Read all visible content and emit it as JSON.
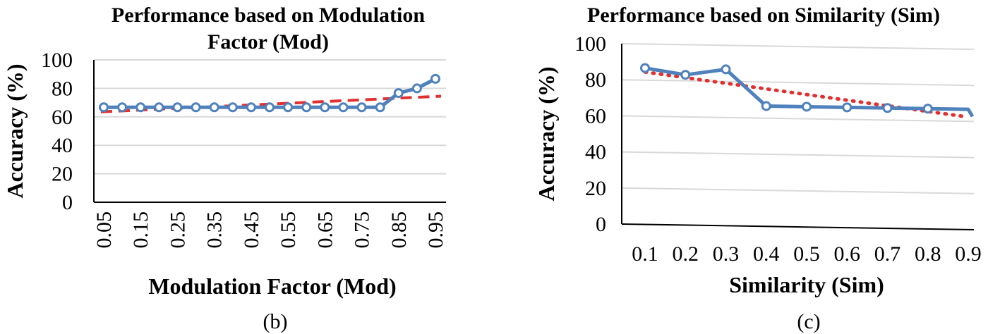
{
  "chart_data": [
    {
      "type": "line",
      "title": "Performance based on Modulation Factor (Mod)",
      "title_lines": [
        "Performance based on Modulation",
        "Factor (Mod)"
      ],
      "xlabel": "Modulation Factor (Mod)",
      "ylabel": "Accuracy (%)",
      "ylim": [
        0,
        100
      ],
      "y_ticks": [
        "0",
        "20",
        "40",
        "60",
        "80",
        "100"
      ],
      "categories": [
        "0.05",
        "0.1",
        "0.15",
        "0.2",
        "0.25",
        "0.3",
        "0.35",
        "0.4",
        "0.45",
        "0.5",
        "0.55",
        "0.6",
        "0.65",
        "0.7",
        "0.75",
        "0.8",
        "0.85",
        "0.9",
        "0.95"
      ],
      "x_tick_labels": [
        "0.05",
        "0.15",
        "0.25",
        "0.35",
        "0.45",
        "0.55",
        "0.65",
        "0.75",
        "0.85",
        "0.95"
      ],
      "series": [
        {
          "name": "Accuracy",
          "values": [
            66.7,
            66.7,
            66.7,
            66.7,
            66.7,
            66.7,
            66.7,
            66.7,
            66.7,
            66.7,
            66.7,
            66.7,
            66.7,
            66.7,
            66.7,
            66.7,
            76.7,
            80,
            86.7
          ],
          "color": "#4f81bd"
        }
      ],
      "trendline": {
        "style": "dashed",
        "color": "#e03030",
        "start": 63.5,
        "end": 74.5
      },
      "grid": true,
      "caption": "(b)"
    },
    {
      "type": "line",
      "title": "Performance based on Similarity (Sim)",
      "xlabel": "Similarity (Sim)",
      "ylabel": "Accuracy (%)",
      "ylim": [
        0,
        100
      ],
      "y_ticks": [
        "0",
        "20",
        "40",
        "60",
        "80",
        "100"
      ],
      "categories": [
        "0.1",
        "0.2",
        "0.3",
        "0.4",
        "0.5",
        "0.6",
        "0.7",
        "0.8",
        "0.9"
      ],
      "series": [
        {
          "name": "Accuracy",
          "values": [
            86.7,
            83.3,
            86.7,
            66.7,
            66.7,
            66.7,
            66.7,
            66.7,
            66.7
          ],
          "color": "#4f81bd"
        }
      ],
      "trendline": {
        "style": "dotted",
        "color": "#e03030",
        "start": 84.5,
        "end": 62.5
      },
      "grid": true,
      "caption": "(c)"
    }
  ]
}
